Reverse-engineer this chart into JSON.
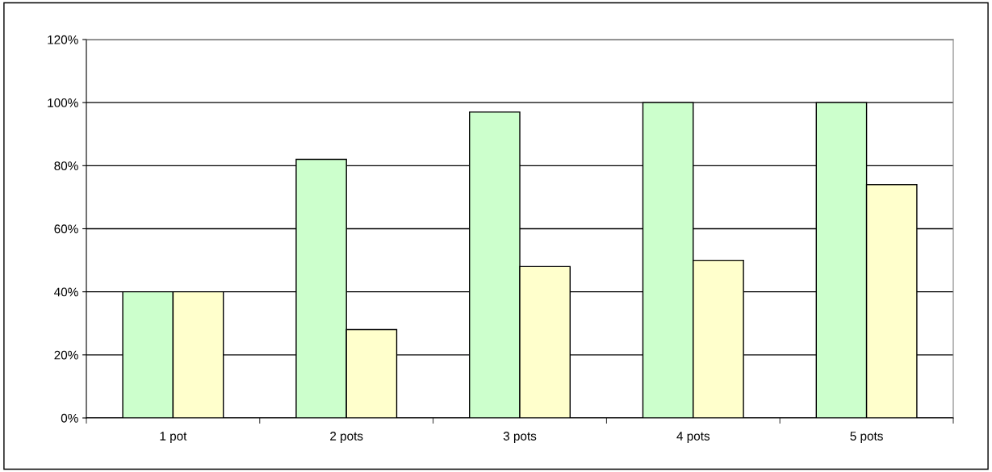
{
  "chart_data": {
    "type": "bar",
    "categories": [
      "1 pot",
      "2 pots",
      "3 pots",
      "4 pots",
      "5 pots"
    ],
    "series": [
      {
        "color": "#ccffcc",
        "values": [
          40,
          82,
          97,
          100,
          100
        ]
      },
      {
        "color": "#ffffcc",
        "values": [
          40,
          28,
          48,
          50,
          74
        ]
      }
    ],
    "ylim": [
      0,
      120
    ],
    "yticks": [
      {
        "value": 0,
        "label": "0%"
      },
      {
        "value": 20,
        "label": "20%"
      },
      {
        "value": 40,
        "label": "40%"
      },
      {
        "value": 60,
        "label": "60%"
      },
      {
        "value": 80,
        "label": "80%"
      },
      {
        "value": 100,
        "label": "100%"
      },
      {
        "value": 120,
        "label": "120%"
      }
    ],
    "grid": "y",
    "legend": false
  }
}
